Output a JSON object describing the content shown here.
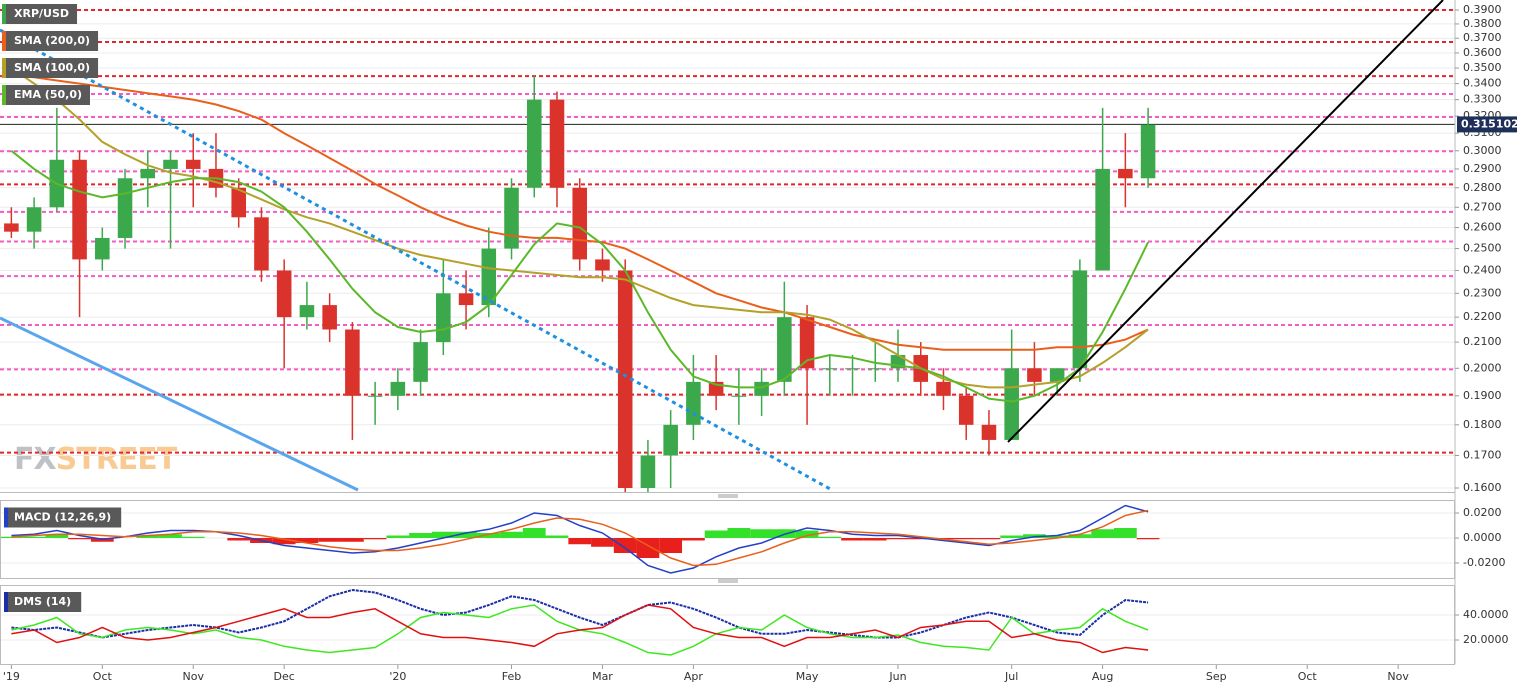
{
  "chart_data": [
    {
      "type": "candlestick",
      "log_scale": true,
      "grid": true,
      "categories": [
        "'19",
        null,
        null,
        null,
        "Oct",
        null,
        null,
        null,
        "Nov",
        null,
        null,
        null,
        "Dec",
        null,
        null,
        null,
        null,
        "'20",
        null,
        null,
        null,
        null,
        "Feb",
        null,
        null,
        null,
        "Mar",
        null,
        null,
        null,
        "Apr",
        null,
        null,
        null,
        null,
        "May",
        null,
        null,
        null,
        "Jun",
        null,
        null,
        null,
        null,
        "Jul",
        null,
        null,
        null,
        "Aug",
        null,
        null,
        null,
        null,
        "Sep",
        null,
        null,
        null,
        "Oct",
        null,
        null,
        null,
        "Nov",
        null,
        null
      ],
      "series": [
        {
          "name": "XRP/USD",
          "color": "#3aa84b",
          "down_color": "#d9332b",
          "open": [
            0.262,
            0.258,
            0.27,
            0.295,
            0.245,
            0.255,
            0.285,
            0.29,
            0.295,
            0.29,
            0.28,
            0.265,
            0.24,
            0.22,
            0.225,
            0.215,
            0.19,
            0.19,
            0.195,
            0.21,
            0.23,
            0.225,
            0.25,
            0.28,
            0.33,
            0.28,
            0.245,
            0.24,
            0.16,
            0.17,
            0.18,
            0.195,
            0.19,
            0.19,
            0.195,
            0.22,
            0.2,
            0.2,
            0.2,
            0.2,
            0.205,
            0.195,
            0.19,
            0.18,
            0.175,
            0.2,
            0.195,
            0.2,
            0.24,
            0.29,
            0.285,
            null,
            null,
            null,
            null,
            null,
            null,
            null,
            null,
            null,
            null,
            null,
            null,
            null
          ],
          "high": [
            0.27,
            0.275,
            0.325,
            0.3,
            0.26,
            0.29,
            0.3,
            0.3,
            0.31,
            0.31,
            0.285,
            0.27,
            0.245,
            0.235,
            0.23,
            0.218,
            0.195,
            0.2,
            0.215,
            0.245,
            0.24,
            0.26,
            0.285,
            0.345,
            0.335,
            0.285,
            0.25,
            0.245,
            0.175,
            0.185,
            0.205,
            0.205,
            0.2,
            0.2,
            0.235,
            0.225,
            0.205,
            0.205,
            0.21,
            0.215,
            0.21,
            0.2,
            0.193,
            0.185,
            0.215,
            0.21,
            0.2,
            0.245,
            0.325,
            0.31,
            0.325,
            null,
            null,
            null,
            null,
            null,
            null,
            null,
            null,
            null,
            null,
            null,
            null,
            null
          ],
          "low": [
            0.255,
            0.25,
            0.268,
            0.22,
            0.24,
            0.25,
            0.27,
            0.25,
            0.27,
            0.275,
            0.26,
            0.235,
            0.2,
            0.215,
            0.21,
            0.175,
            0.18,
            0.185,
            0.19,
            0.205,
            0.215,
            0.22,
            0.245,
            0.275,
            0.27,
            0.24,
            0.235,
            0.155,
            0.15,
            0.16,
            0.175,
            0.185,
            0.18,
            0.183,
            0.19,
            0.18,
            0.19,
            0.19,
            0.195,
            0.195,
            0.19,
            0.185,
            0.175,
            0.17,
            0.175,
            0.19,
            0.19,
            0.195,
            0.24,
            0.27,
            0.28,
            null,
            null,
            null,
            null,
            null,
            null,
            null,
            null,
            null,
            null,
            null,
            null,
            null
          ],
          "close": [
            0.258,
            0.27,
            0.295,
            0.245,
            0.255,
            0.285,
            0.29,
            0.295,
            0.29,
            0.28,
            0.265,
            0.24,
            0.22,
            0.225,
            0.215,
            0.19,
            0.19,
            0.195,
            0.21,
            0.23,
            0.225,
            0.25,
            0.28,
            0.33,
            0.28,
            0.245,
            0.24,
            0.16,
            0.17,
            0.18,
            0.195,
            0.19,
            0.19,
            0.195,
            0.22,
            0.2,
            0.2,
            0.2,
            0.2,
            0.205,
            0.195,
            0.19,
            0.18,
            0.175,
            0.2,
            0.195,
            0.2,
            0.24,
            0.29,
            0.285,
            0.315,
            null,
            null,
            null,
            null,
            null,
            null,
            null,
            null,
            null,
            null,
            null,
            null,
            null
          ]
        },
        {
          "name": "SMA (200,0)",
          "color": "#e8601c",
          "values": [
            0.345,
            0.344,
            0.342,
            0.34,
            0.338,
            0.336,
            0.334,
            0.332,
            0.33,
            0.327,
            0.323,
            0.318,
            0.31,
            0.303,
            0.296,
            0.289,
            0.282,
            0.276,
            0.27,
            0.265,
            0.261,
            0.258,
            0.256,
            0.255,
            0.255,
            0.254,
            0.253,
            0.25,
            0.245,
            0.24,
            0.235,
            0.23,
            0.227,
            0.224,
            0.222,
            0.219,
            0.216,
            0.213,
            0.211,
            0.209,
            0.208,
            0.207,
            0.207,
            0.207,
            0.207,
            0.207,
            0.208,
            0.208,
            0.209,
            0.211,
            0.215,
            null,
            null,
            null,
            null,
            null,
            null,
            null,
            null,
            null,
            null,
            null,
            null,
            null
          ]
        },
        {
          "name": "SMA (100,0)",
          "color": "#b3a12a",
          "values": [
            0.35,
            0.34,
            0.33,
            0.318,
            0.305,
            0.298,
            0.292,
            0.288,
            0.286,
            0.283,
            0.279,
            0.274,
            0.269,
            0.265,
            0.262,
            0.258,
            0.254,
            0.25,
            0.247,
            0.245,
            0.243,
            0.241,
            0.24,
            0.239,
            0.238,
            0.237,
            0.237,
            0.236,
            0.232,
            0.228,
            0.225,
            0.224,
            0.223,
            0.222,
            0.222,
            0.221,
            0.219,
            0.215,
            0.21,
            0.205,
            0.2,
            0.196,
            0.194,
            0.193,
            0.193,
            0.194,
            0.195,
            0.197,
            0.202,
            0.208,
            0.215,
            null,
            null,
            null,
            null,
            null,
            null,
            null,
            null,
            null,
            null,
            null,
            null,
            null
          ]
        },
        {
          "name": "EMA (50,0)",
          "color": "#5cb82a",
          "values": [
            0.3,
            0.29,
            0.282,
            0.278,
            0.275,
            0.277,
            0.28,
            0.283,
            0.285,
            0.285,
            0.283,
            0.278,
            0.27,
            0.258,
            0.245,
            0.232,
            0.222,
            0.216,
            0.214,
            0.215,
            0.218,
            0.225,
            0.238,
            0.252,
            0.262,
            0.26,
            0.252,
            0.24,
            0.222,
            0.207,
            0.197,
            0.194,
            0.193,
            0.193,
            0.196,
            0.203,
            0.205,
            0.204,
            0.202,
            0.201,
            0.2,
            0.197,
            0.193,
            0.189,
            0.188,
            0.19,
            0.194,
            0.2,
            0.214,
            0.232,
            0.253,
            null,
            null,
            null,
            null,
            null,
            null,
            null,
            null,
            null,
            null,
            null,
            null,
            null
          ]
        }
      ],
      "levels": [
        {
          "value": 0.39,
          "color": "#e3262b"
        },
        {
          "value": 0.3674,
          "color": "#e3262b"
        },
        {
          "value": 0.3448,
          "color": "#e3262b"
        },
        {
          "value": 0.3335,
          "color": "#f25cc4"
        },
        {
          "value": 0.3195,
          "color": "#f25cc4"
        },
        {
          "value": 0.2997,
          "color": "#f25cc4"
        },
        {
          "value": 0.2887,
          "color": "#f25cc4"
        },
        {
          "value": 0.2818,
          "color": "#e3262b"
        },
        {
          "value": 0.2677,
          "color": "#f25cc4"
        },
        {
          "value": 0.2533,
          "color": "#f25cc4"
        },
        {
          "value": 0.2375,
          "color": "#f25cc4"
        },
        {
          "value": 0.2168,
          "color": "#f25cc4"
        },
        {
          "value": 0.1996,
          "color": "#f25cc4"
        },
        {
          "value": 0.1904,
          "color": "#e3262b"
        },
        {
          "value": 0.1709,
          "color": "#e3262b"
        }
      ],
      "last_price": 0.315102,
      "watermark": [
        "FX",
        "STREET"
      ],
      "ylim": [
        0.16,
        0.39
      ],
      "yticks": [
        {
          "value": 0.16,
          "label": "0.1600"
        },
        {
          "value": 0.17,
          "label": "0.1700"
        },
        {
          "value": 0.18,
          "label": "0.1800"
        },
        {
          "value": 0.19,
          "label": "0.1900"
        },
        {
          "value": 0.2,
          "label": "0.2000"
        },
        {
          "value": 0.21,
          "label": "0.2100"
        },
        {
          "value": 0.22,
          "label": "0.2200"
        },
        {
          "value": 0.23,
          "label": "0.2300"
        },
        {
          "value": 0.24,
          "label": "0.2400"
        },
        {
          "value": 0.25,
          "label": "0.2500"
        },
        {
          "value": 0.26,
          "label": "0.2600"
        },
        {
          "value": 0.27,
          "label": "0.2700"
        },
        {
          "value": 0.28,
          "label": "0.2800"
        },
        {
          "value": 0.29,
          "label": "0.2900"
        },
        {
          "value": 0.3,
          "label": "0.3000"
        },
        {
          "value": 0.31,
          "label": "0.3100"
        },
        {
          "value": 0.32,
          "label": "0.3200"
        },
        {
          "value": 0.33,
          "label": "0.3300"
        },
        {
          "value": 0.34,
          "label": "0.3400"
        },
        {
          "value": 0.35,
          "label": "0.3500"
        },
        {
          "value": 0.36,
          "label": "0.3600"
        },
        {
          "value": 0.37,
          "label": "0.3700"
        },
        {
          "value": 0.38,
          "label": "0.3800"
        },
        {
          "value": 0.39,
          "label": "0.3900"
        }
      ]
    },
    {
      "type": "macd",
      "title": "MACD (12,26,9)",
      "grid": true,
      "series": [
        {
          "color": "#2340c8",
          "values": [
            0.002,
            0.003,
            0.006,
            0.002,
            -0.001,
            0.001,
            0.004,
            0.006,
            0.006,
            0.005,
            0.002,
            -0.002,
            -0.006,
            -0.008,
            -0.01,
            -0.012,
            -0.011,
            -0.008,
            -0.004,
            0.0,
            0.004,
            0.007,
            0.012,
            0.02,
            0.018,
            0.01,
            0.004,
            -0.008,
            -0.022,
            -0.028,
            -0.024,
            -0.015,
            -0.008,
            -0.004,
            0.003,
            0.008,
            0.006,
            0.003,
            0.002,
            0.002,
            0.0,
            -0.002,
            -0.004,
            -0.006,
            -0.002,
            0.001,
            0.002,
            0.006,
            0.016,
            0.026,
            0.021
          ]
        },
        {
          "color": "#e8601c",
          "values": [
            0.001,
            0.002,
            0.003,
            0.003,
            0.002,
            0.001,
            0.002,
            0.003,
            0.005,
            0.005,
            0.004,
            0.002,
            -0.001,
            -0.004,
            -0.007,
            -0.009,
            -0.01,
            -0.01,
            -0.008,
            -0.005,
            -0.001,
            0.003,
            0.007,
            0.012,
            0.016,
            0.015,
            0.011,
            0.004,
            -0.006,
            -0.016,
            -0.022,
            -0.021,
            -0.016,
            -0.011,
            -0.004,
            0.002,
            0.005,
            0.005,
            0.004,
            0.003,
            0.001,
            -0.001,
            -0.003,
            -0.005,
            -0.004,
            -0.002,
            0.0,
            0.003,
            0.009,
            0.018,
            0.022
          ]
        }
      ],
      "histogram": {
        "color": "#33e02a",
        "down_color": "#e8201c",
        "values": [
          0.001,
          0.001,
          0.003,
          -0.001,
          -0.003,
          0.0,
          0.002,
          0.003,
          0.001,
          0.0,
          -0.002,
          -0.004,
          -0.005,
          -0.004,
          -0.003,
          -0.003,
          -0.001,
          0.002,
          0.004,
          0.005,
          0.005,
          0.004,
          0.005,
          0.008,
          0.002,
          -0.005,
          -0.007,
          -0.012,
          -0.016,
          -0.012,
          -0.002,
          0.006,
          0.008,
          0.007,
          0.007,
          0.006,
          0.001,
          -0.002,
          -0.002,
          -0.001,
          -0.001,
          -0.001,
          -0.001,
          -0.001,
          0.002,
          0.003,
          0.002,
          0.003,
          0.007,
          0.008,
          -0.001
        ]
      },
      "ylim": [
        -0.03,
        0.03
      ],
      "yticks": [
        {
          "value": 0.02,
          "label": "0.0200"
        },
        {
          "value": 0.0,
          "label": "0.0000"
        },
        {
          "value": -0.02,
          "label": "-0.0200"
        }
      ]
    },
    {
      "type": "dms",
      "title": "DMS (14)",
      "grid": true,
      "series": [
        {
          "color": "#1b2ea8",
          "values": [
            30,
            28,
            30,
            26,
            22,
            25,
            28,
            30,
            32,
            30,
            26,
            30,
            35,
            45,
            55,
            60,
            58,
            52,
            45,
            40,
            42,
            48,
            55,
            52,
            45,
            38,
            32,
            40,
            48,
            50,
            45,
            38,
            30,
            25,
            25,
            28,
            26,
            24,
            22,
            22,
            26,
            32,
            38,
            42,
            38,
            32,
            26,
            24,
            40,
            52,
            50
          ]
        },
        {
          "color": "#3ee820",
          "values": [
            28,
            32,
            38,
            25,
            22,
            28,
            30,
            28,
            25,
            28,
            22,
            20,
            15,
            12,
            10,
            12,
            14,
            25,
            38,
            42,
            40,
            38,
            45,
            48,
            35,
            28,
            25,
            18,
            10,
            8,
            15,
            25,
            30,
            28,
            40,
            30,
            25,
            22,
            22,
            24,
            18,
            15,
            14,
            12,
            38,
            25,
            28,
            30,
            45,
            35,
            28
          ]
        },
        {
          "color": "#e01010",
          "values": [
            25,
            28,
            18,
            22,
            30,
            22,
            20,
            22,
            26,
            30,
            35,
            40,
            45,
            38,
            38,
            42,
            45,
            35,
            25,
            22,
            22,
            20,
            18,
            15,
            25,
            28,
            30,
            40,
            48,
            45,
            30,
            25,
            22,
            22,
            15,
            22,
            22,
            25,
            28,
            22,
            30,
            32,
            35,
            35,
            22,
            25,
            20,
            18,
            10,
            14,
            12
          ]
        }
      ],
      "ylim": [
        0,
        64
      ],
      "yticks": [
        {
          "value": 40,
          "label": "40.0000"
        },
        {
          "value": 20,
          "label": "20.0000"
        }
      ]
    }
  ]
}
